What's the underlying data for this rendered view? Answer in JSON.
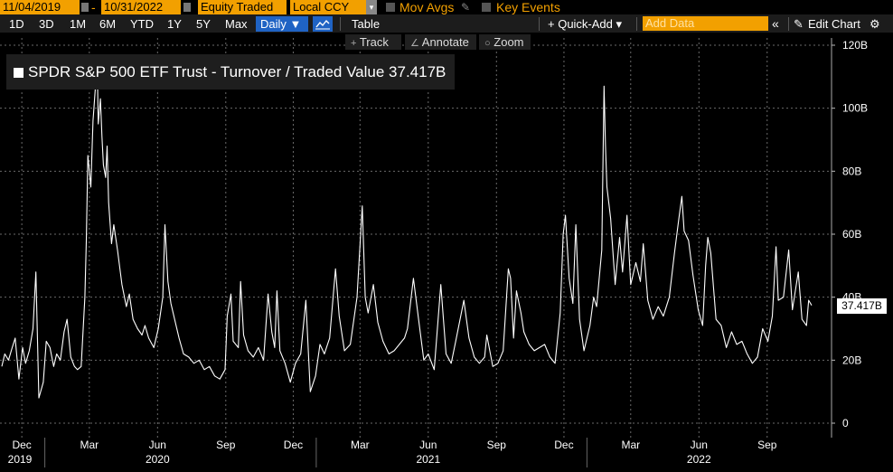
{
  "toolbar_top": {
    "start_date": "11/04/2019",
    "end_date": "10/31/2022",
    "field": "Equity Traded",
    "currency": "Local CCY",
    "mov_avgs": "Mov Avgs",
    "key_events": "Key Events"
  },
  "toolbar_ranges": {
    "items": [
      "1D",
      "3D",
      "1M",
      "6M",
      "YTD",
      "1Y",
      "5Y",
      "Max"
    ],
    "frequency": "Daily ▼",
    "table": "Table",
    "quick_add": "+ Quick-Add ▾",
    "add_data_placeholder": "Add Data",
    "edit_chart": "Edit Chart"
  },
  "tools": {
    "track": "Track",
    "annotate": "Annotate",
    "zoom": "Zoom"
  },
  "colors": {
    "accent": "#f2a000",
    "selected": "#1f63c4",
    "line": "#ffffff",
    "grid": "#6a6a6a"
  },
  "chart_data": {
    "type": "line",
    "title": "SPDR S&P 500 ETF Trust - Turnover / Traded Value 37.417B",
    "last_value_label": "37.417B",
    "y_axis_side": "right",
    "ylim": [
      0,
      120
    ],
    "y_ticks": [
      {
        "v": 0,
        "label": "0"
      },
      {
        "v": 20,
        "label": "20B"
      },
      {
        "v": 40,
        "label": "40B"
      },
      {
        "v": 60,
        "label": "60B"
      },
      {
        "v": 80,
        "label": "80B"
      },
      {
        "v": 100,
        "label": "100B"
      },
      {
        "v": 120,
        "label": "120B"
      }
    ],
    "x_range": [
      "2019-11-04",
      "2022-10-31"
    ],
    "month_ticks": [
      {
        "date": "2019-12-01",
        "label": "Dec"
      },
      {
        "date": "2020-03-01",
        "label": "Mar"
      },
      {
        "date": "2020-06-01",
        "label": "Jun"
      },
      {
        "date": "2020-09-01",
        "label": "Sep"
      },
      {
        "date": "2020-12-01",
        "label": "Dec"
      },
      {
        "date": "2021-03-01",
        "label": "Mar"
      },
      {
        "date": "2021-06-01",
        "label": "Jun"
      },
      {
        "date": "2021-09-01",
        "label": "Sep"
      },
      {
        "date": "2021-12-01",
        "label": "Dec"
      },
      {
        "date": "2022-03-01",
        "label": "Mar"
      },
      {
        "date": "2022-06-01",
        "label": "Jun"
      },
      {
        "date": "2022-09-01",
        "label": "Sep"
      }
    ],
    "year_labels": [
      {
        "date": "2019-11-04",
        "label": "2019"
      },
      {
        "date": "2020-06-01",
        "label": "2020"
      },
      {
        "date": "2021-06-01",
        "label": "2021"
      },
      {
        "date": "2022-06-01",
        "label": "2022"
      }
    ],
    "year_dividers": [
      "2020-01-01",
      "2021-01-01",
      "2022-01-01"
    ],
    "grid": true,
    "series": [
      {
        "name": "Turnover / Traded Value",
        "points": [
          [
            "2019-11-04",
            18
          ],
          [
            "2019-11-08",
            22
          ],
          [
            "2019-11-13",
            20
          ],
          [
            "2019-11-18",
            24
          ],
          [
            "2019-11-22",
            27
          ],
          [
            "2019-11-27",
            14
          ],
          [
            "2019-12-02",
            24
          ],
          [
            "2019-12-06",
            19
          ],
          [
            "2019-12-11",
            23
          ],
          [
            "2019-12-16",
            30
          ],
          [
            "2019-12-20",
            48
          ],
          [
            "2019-12-24",
            8
          ],
          [
            "2019-12-30",
            13
          ],
          [
            "2020-01-03",
            26
          ],
          [
            "2020-01-08",
            24
          ],
          [
            "2020-01-13",
            18
          ],
          [
            "2020-01-17",
            22
          ],
          [
            "2020-01-22",
            20
          ],
          [
            "2020-01-27",
            29
          ],
          [
            "2020-01-31",
            33
          ],
          [
            "2020-02-05",
            21
          ],
          [
            "2020-02-10",
            18
          ],
          [
            "2020-02-14",
            17
          ],
          [
            "2020-02-19",
            18
          ],
          [
            "2020-02-24",
            40
          ],
          [
            "2020-02-26",
            58
          ],
          [
            "2020-02-28",
            85
          ],
          [
            "2020-03-03",
            75
          ],
          [
            "2020-03-06",
            96
          ],
          [
            "2020-03-09",
            106
          ],
          [
            "2020-03-12",
            110
          ],
          [
            "2020-03-13",
            95
          ],
          [
            "2020-03-16",
            103
          ],
          [
            "2020-03-18",
            91
          ],
          [
            "2020-03-20",
            82
          ],
          [
            "2020-03-23",
            78
          ],
          [
            "2020-03-25",
            88
          ],
          [
            "2020-03-27",
            70
          ],
          [
            "2020-03-31",
            57
          ],
          [
            "2020-04-03",
            63
          ],
          [
            "2020-04-08",
            55
          ],
          [
            "2020-04-14",
            44
          ],
          [
            "2020-04-20",
            37
          ],
          [
            "2020-04-24",
            41
          ],
          [
            "2020-04-29",
            33
          ],
          [
            "2020-05-05",
            30
          ],
          [
            "2020-05-11",
            28
          ],
          [
            "2020-05-15",
            31
          ],
          [
            "2020-05-20",
            27
          ],
          [
            "2020-05-27",
            24
          ],
          [
            "2020-06-02",
            30
          ],
          [
            "2020-06-08",
            40
          ],
          [
            "2020-06-11",
            63
          ],
          [
            "2020-06-15",
            45
          ],
          [
            "2020-06-19",
            38
          ],
          [
            "2020-06-24",
            33
          ],
          [
            "2020-06-30",
            27
          ],
          [
            "2020-07-06",
            22
          ],
          [
            "2020-07-13",
            21
          ],
          [
            "2020-07-20",
            19
          ],
          [
            "2020-07-27",
            20
          ],
          [
            "2020-08-03",
            17
          ],
          [
            "2020-08-10",
            18
          ],
          [
            "2020-08-17",
            15
          ],
          [
            "2020-08-24",
            14
          ],
          [
            "2020-08-31",
            17
          ],
          [
            "2020-09-03",
            34
          ],
          [
            "2020-09-08",
            41
          ],
          [
            "2020-09-11",
            26
          ],
          [
            "2020-09-18",
            24
          ],
          [
            "2020-09-21",
            45
          ],
          [
            "2020-09-25",
            28
          ],
          [
            "2020-10-01",
            23
          ],
          [
            "2020-10-08",
            21
          ],
          [
            "2020-10-15",
            24
          ],
          [
            "2020-10-22",
            20
          ],
          [
            "2020-10-28",
            41
          ],
          [
            "2020-11-02",
            29
          ],
          [
            "2020-11-06",
            24
          ],
          [
            "2020-11-09",
            42
          ],
          [
            "2020-11-13",
            23
          ],
          [
            "2020-11-20",
            19
          ],
          [
            "2020-11-27",
            13
          ],
          [
            "2020-12-04",
            19
          ],
          [
            "2020-12-11",
            22
          ],
          [
            "2020-12-18",
            39
          ],
          [
            "2020-12-24",
            10
          ],
          [
            "2020-12-31",
            15
          ],
          [
            "2021-01-06",
            25
          ],
          [
            "2021-01-12",
            22
          ],
          [
            "2021-01-19",
            27
          ],
          [
            "2021-01-27",
            49
          ],
          [
            "2021-02-01",
            34
          ],
          [
            "2021-02-08",
            23
          ],
          [
            "2021-02-16",
            25
          ],
          [
            "2021-02-25",
            40
          ],
          [
            "2021-03-04",
            69
          ],
          [
            "2021-03-08",
            40
          ],
          [
            "2021-03-12",
            35
          ],
          [
            "2021-03-19",
            44
          ],
          [
            "2021-03-25",
            32
          ],
          [
            "2021-04-01",
            26
          ],
          [
            "2021-04-09",
            22
          ],
          [
            "2021-04-16",
            23
          ],
          [
            "2021-04-23",
            25
          ],
          [
            "2021-04-30",
            27
          ],
          [
            "2021-05-04",
            30
          ],
          [
            "2021-05-12",
            46
          ],
          [
            "2021-05-19",
            33
          ],
          [
            "2021-05-26",
            20
          ],
          [
            "2021-06-01",
            22
          ],
          [
            "2021-06-09",
            17
          ],
          [
            "2021-06-18",
            44
          ],
          [
            "2021-06-25",
            22
          ],
          [
            "2021-07-02",
            19
          ],
          [
            "2021-07-08",
            26
          ],
          [
            "2021-07-19",
            39
          ],
          [
            "2021-07-26",
            27
          ],
          [
            "2021-08-02",
            21
          ],
          [
            "2021-08-09",
            19
          ],
          [
            "2021-08-16",
            21
          ],
          [
            "2021-08-19",
            28
          ],
          [
            "2021-08-27",
            18
          ],
          [
            "2021-09-03",
            19
          ],
          [
            "2021-09-10",
            23
          ],
          [
            "2021-09-17",
            49
          ],
          [
            "2021-09-20",
            46
          ],
          [
            "2021-09-24",
            27
          ],
          [
            "2021-09-28",
            42
          ],
          [
            "2021-10-04",
            35
          ],
          [
            "2021-10-08",
            29
          ],
          [
            "2021-10-15",
            25
          ],
          [
            "2021-10-22",
            23
          ],
          [
            "2021-10-29",
            24
          ],
          [
            "2021-11-05",
            25
          ],
          [
            "2021-11-12",
            21
          ],
          [
            "2021-11-19",
            19
          ],
          [
            "2021-11-26",
            35
          ],
          [
            "2021-11-30",
            60
          ],
          [
            "2021-12-03",
            66
          ],
          [
            "2021-12-08",
            46
          ],
          [
            "2021-12-13",
            38
          ],
          [
            "2021-12-17",
            63
          ],
          [
            "2021-12-22",
            33
          ],
          [
            "2021-12-28",
            23
          ],
          [
            "2022-01-05",
            31
          ],
          [
            "2022-01-10",
            40
          ],
          [
            "2022-01-14",
            37
          ],
          [
            "2022-01-21",
            55
          ],
          [
            "2022-01-24",
            107
          ],
          [
            "2022-01-26",
            88
          ],
          [
            "2022-01-28",
            75
          ],
          [
            "2022-02-02",
            65
          ],
          [
            "2022-02-08",
            44
          ],
          [
            "2022-02-14",
            59
          ],
          [
            "2022-02-18",
            48
          ],
          [
            "2022-02-24",
            66
          ],
          [
            "2022-03-01",
            44
          ],
          [
            "2022-03-08",
            51
          ],
          [
            "2022-03-14",
            45
          ],
          [
            "2022-03-18",
            57
          ],
          [
            "2022-03-24",
            39
          ],
          [
            "2022-03-31",
            33
          ],
          [
            "2022-04-07",
            37
          ],
          [
            "2022-04-14",
            34
          ],
          [
            "2022-04-22",
            40
          ],
          [
            "2022-04-29",
            54
          ],
          [
            "2022-05-05",
            65
          ],
          [
            "2022-05-09",
            72
          ],
          [
            "2022-05-12",
            61
          ],
          [
            "2022-05-18",
            58
          ],
          [
            "2022-05-24",
            47
          ],
          [
            "2022-05-31",
            36
          ],
          [
            "2022-06-06",
            31
          ],
          [
            "2022-06-10",
            50
          ],
          [
            "2022-06-13",
            59
          ],
          [
            "2022-06-17",
            54
          ],
          [
            "2022-06-24",
            33
          ],
          [
            "2022-07-01",
            31
          ],
          [
            "2022-07-08",
            24
          ],
          [
            "2022-07-15",
            29
          ],
          [
            "2022-07-22",
            25
          ],
          [
            "2022-07-29",
            26
          ],
          [
            "2022-08-05",
            22
          ],
          [
            "2022-08-12",
            19
          ],
          [
            "2022-08-19",
            21
          ],
          [
            "2022-08-26",
            30
          ],
          [
            "2022-09-02",
            26
          ],
          [
            "2022-09-08",
            34
          ],
          [
            "2022-09-13",
            56
          ],
          [
            "2022-09-16",
            39
          ],
          [
            "2022-09-23",
            40
          ],
          [
            "2022-09-30",
            55
          ],
          [
            "2022-10-05",
            36
          ],
          [
            "2022-10-13",
            48
          ],
          [
            "2022-10-18",
            33
          ],
          [
            "2022-10-24",
            31
          ],
          [
            "2022-10-27",
            39
          ],
          [
            "2022-10-31",
            37.417
          ]
        ]
      }
    ]
  }
}
